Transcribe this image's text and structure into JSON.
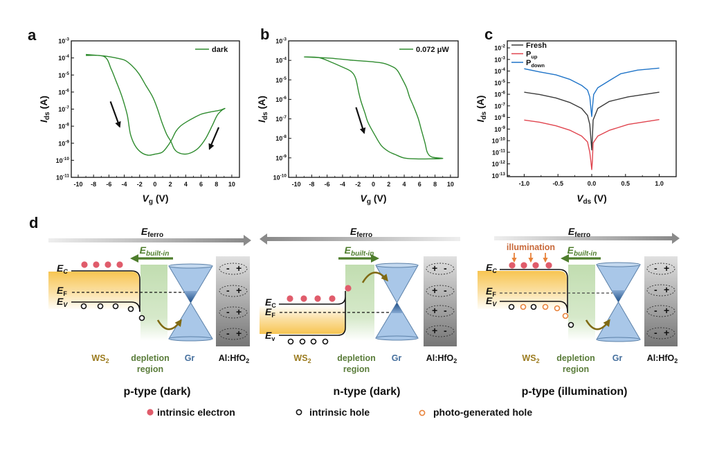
{
  "figure": {
    "panel_labels": {
      "a": "a",
      "b": "b",
      "c": "c",
      "d": "d"
    }
  },
  "chart_data": [
    {
      "panel": "a",
      "type": "line",
      "title": "",
      "xlabel": {
        "symbol": "V",
        "sub": "g",
        "unit": " (V)"
      },
      "ylabel": {
        "symbol": "I",
        "sub": "ds",
        "unit": " (A)"
      },
      "xscale": "linear",
      "yscale": "log",
      "xlim": [
        -10.9,
        11
      ],
      "ylim": [
        1e-11,
        0.001
      ],
      "grid": false,
      "x_ticks": [
        -10,
        -8,
        -6,
        -4,
        -2,
        0,
        2,
        4,
        6,
        8,
        10
      ],
      "x_tick_labels": [
        "-10",
        "-8",
        "-6",
        "-4",
        "-2",
        "0",
        "2",
        "4",
        "6",
        "8",
        "10"
      ],
      "y_ticks": [
        0.001,
        0.0001,
        1e-05,
        1e-06,
        1e-07,
        1e-08,
        1e-09,
        1e-10,
        1e-11
      ],
      "y_tick_labels": [
        "10^-3",
        "10^-4",
        "10^-5",
        "10^-6",
        "10^-7",
        "10^-8",
        "10^-9",
        "10^-10",
        "10^-11"
      ],
      "legend": {
        "position": "top-right"
      },
      "series": [
        {
          "name": "dark",
          "name_sub": "",
          "color": "#2e8b2e",
          "x": [
            -9.0,
            -6.6,
            -5.7,
            -5.1,
            -4.5,
            -4.1,
            -3.6,
            -3.2,
            -2.6,
            -1.8,
            -0.9,
            0.0,
            0.9,
            1.5,
            2.1,
            2.7,
            3.3,
            4.2,
            5.1,
            6.0,
            6.6,
            7.5,
            8.4,
            9.1,
            8.7,
            8.1,
            7.5,
            6.6,
            5.7,
            4.8,
            3.9,
            3.0,
            2.5,
            2.1,
            1.5,
            0.9,
            0.3,
            -0.3,
            -1.2,
            -2.1,
            -3.0,
            -3.9,
            -5.1,
            -6.6,
            -9.0
          ],
          "y": [
            0.00014,
            0.00012,
            2.2e-05,
            4.7e-06,
            9.8e-07,
            2.8e-07,
            4.3e-08,
            3.5e-09,
            7.4e-10,
            2.9e-10,
            2e-10,
            2.3e-10,
            2.9e-10,
            5.5e-10,
            1.4e-09,
            4.8e-09,
            1e-08,
            1.9e-08,
            3.2e-08,
            5e-08,
            5.9e-08,
            7.2e-08,
            8.5e-08,
            1.1e-07,
            8.5e-08,
            4.3e-08,
            1.2e-08,
            1.9e-09,
            5.5e-10,
            2.9e-10,
            2.3e-10,
            2.9e-10,
            4.7e-10,
            1.2e-09,
            3.5e-09,
            1.7e-08,
            1.1e-07,
            5.2e-07,
            2.5e-06,
            1.2e-05,
            3.5e-05,
            7.2e-05,
            0.0001,
            0.00013,
            0.00016
          ]
        }
      ],
      "annotations": [
        {
          "type": "arrow",
          "meaning": "sweep direction",
          "from": [
            -5.8,
            2.8e-07
          ],
          "to": [
            -4.6,
            9.3e-09
          ]
        },
        {
          "type": "arrow",
          "meaning": "sweep direction",
          "from": [
            8.3,
            8.5e-09
          ],
          "to": [
            7.1,
            4.7e-10
          ]
        }
      ]
    },
    {
      "panel": "b",
      "type": "line",
      "title": "",
      "xlabel": {
        "symbol": "V",
        "sub": "g",
        "unit": " (V)"
      },
      "ylabel": {
        "symbol": "I",
        "sub": "ds",
        "unit": " (A)"
      },
      "xscale": "linear",
      "yscale": "log",
      "xlim": [
        -11,
        11
      ],
      "ylim": [
        1e-10,
        0.001
      ],
      "grid": false,
      "x_ticks": [
        -10,
        -8,
        -6,
        -4,
        -2,
        0,
        2,
        4,
        6,
        8,
        10
      ],
      "x_tick_labels": [
        "-10",
        "-8",
        "-6",
        "-4",
        "-2",
        "0",
        "2",
        "4",
        "6",
        "8",
        "10"
      ],
      "y_ticks": [
        0.001,
        0.0001,
        1e-05,
        1e-06,
        1e-07,
        1e-08,
        1e-09,
        1e-10
      ],
      "y_tick_labels": [
        "10^-3",
        "10^-4",
        "10^-5",
        "10^-6",
        "10^-7",
        "10^-8",
        "10^-9",
        "10^-10"
      ],
      "legend": {
        "position": "top-right"
      },
      "series": [
        {
          "name": "0.072 μW",
          "name_sub": "",
          "color": "#2e8b2e",
          "x": [
            -9.0,
            -7.1,
            -5.6,
            -4.1,
            -2.9,
            -2.3,
            -1.9,
            -1.6,
            -1.1,
            -0.7,
            0.1,
            1.0,
            1.9,
            2.8,
            4.0,
            5.5,
            7.3,
            9.0,
            7.6,
            7.0,
            6.7,
            6.2,
            5.8,
            5.2,
            4.7,
            4.3,
            3.7,
            3.1,
            2.5,
            1.3,
            -0.2,
            -2.6,
            -5.6,
            -9.0
          ],
          "y": [
            0.00015,
            0.00014,
            8.5e-05,
            4.7e-05,
            2.7e-05,
            1.2e-05,
            2.3e-06,
            7.8e-07,
            2e-07,
            6.6e-08,
            1.7e-08,
            4.4e-09,
            2.2e-09,
            1.5e-09,
            9.8e-10,
            8.9e-10,
            8.9e-10,
            9.3e-10,
            1.1e-09,
            1.9e-09,
            5.8e-09,
            3e-08,
            1.1e-07,
            4.5e-07,
            1.3e-06,
            4e-06,
            1.2e-05,
            3.1e-05,
            4.7e-05,
            7.1e-05,
            8.5e-05,
            0.0001,
            0.00013,
            0.00015
          ]
        }
      ],
      "annotations": [
        {
          "type": "arrow",
          "meaning": "sweep direction",
          "from": [
            -2.25,
            3.9e-07
          ],
          "to": [
            -1.2,
            1.9e-08
          ]
        }
      ]
    },
    {
      "panel": "c",
      "type": "line",
      "title": "",
      "xlabel": {
        "symbol": "V",
        "sub": "ds",
        "unit": " (V)"
      },
      "ylabel": {
        "symbol": "I",
        "sub": "ds",
        "unit": " (A)"
      },
      "xscale": "linear",
      "yscale": "log",
      "xlim": [
        -1.25,
        1.25
      ],
      "ylim": [
        7.9e-14,
        0.04
      ],
      "grid": false,
      "x_ticks": [
        -1.0,
        -0.5,
        0.0,
        0.5,
        1.0
      ],
      "x_tick_labels": [
        "-1.0",
        "-0.5",
        "0.0",
        "0.5",
        "1.0"
      ],
      "y_ticks": [
        0.01,
        0.001,
        0.0001,
        1e-05,
        1e-06,
        1e-07,
        1e-08,
        1e-09,
        1e-10,
        1e-11,
        1e-12,
        1e-13
      ],
      "y_tick_labels": [
        "10^-2",
        "10^-3",
        "10^-4",
        "10^-5",
        "10^-6",
        "10^-7",
        "10^-8",
        "10^-9",
        "10^-10",
        "10^-11",
        "10^-12",
        "10^-13"
      ],
      "legend": {
        "position": "top-left"
      },
      "series": [
        {
          "name": "Fresh",
          "name_sub": "",
          "color": "#3a3a3a",
          "x": [
            -1.0,
            -0.77,
            -0.53,
            -0.32,
            -0.15,
            -0.063,
            -0.029,
            -0.012,
            0.0,
            0.009,
            0.02,
            0.09,
            0.26,
            0.54,
            1.0
          ],
          "y": [
            1.5e-06,
            9.5e-07,
            4.8e-07,
            1.9e-07,
            6e-08,
            1.5e-08,
            2.5e-09,
            1.5e-10,
            1.6e-11,
            1.5e-10,
            6e-09,
            6e-08,
            2.4e-07,
            6e-07,
            1.5e-06
          ]
        },
        {
          "name": "P",
          "name_sub": "up",
          "color": "#e0444e",
          "x": [
            -1.0,
            -0.77,
            -0.53,
            -0.32,
            -0.15,
            -0.063,
            -0.029,
            -0.012,
            0.0,
            0.009,
            0.02,
            0.09,
            0.26,
            0.54,
            1.0
          ],
          "y": [
            6e-09,
            3.9e-09,
            1.9e-09,
            7.8e-10,
            2.5e-10,
            7.8e-11,
            1e-11,
            1.6e-12,
            3.2e-13,
            1.6e-12,
            6.3e-11,
            2.5e-10,
            7.8e-10,
            2.5e-09,
            6.6e-09
          ]
        },
        {
          "name": "P",
          "name_sub": "down",
          "color": "#1f74c8",
          "x": [
            -1.0,
            -0.77,
            -0.53,
            -0.32,
            -0.15,
            -0.063,
            -0.029,
            -0.012,
            0.0,
            0.009,
            0.029,
            0.09,
            0.26,
            0.43,
            0.68,
            1.0
          ],
          "y": [
            0.00016,
            8.5e-05,
            4.7e-05,
            1.9e-05,
            5.9e-06,
            2.3e-06,
            6e-07,
            6e-08,
            1.2e-08,
            6e-08,
            9.5e-07,
            3.7e-06,
            1.5e-05,
            5.9e-05,
            0.00012,
            0.00018
          ]
        }
      ],
      "annotations": []
    }
  ],
  "schematic": {
    "colors": {
      "electron": "#e05c6b",
      "intrinsic_hole": "#111111",
      "photo_hole": "#e8823a",
      "ws2_label": "#9b7b1f",
      "depletion_label": "#5a7c3a",
      "gr_label": "#46709e",
      "builtin": "#4e7d2c",
      "illumination": "#c8693a"
    },
    "panels": [
      {
        "title": "p-type (dark)",
        "e_ferro": {
          "symbol": "E",
          "sub": "ferro",
          "direction": "right"
        },
        "e_builtin": {
          "symbol": "E",
          "sub": "built-in",
          "direction": "left"
        },
        "levels": {
          "symbol": "E",
          "ec": "C",
          "ef": "F",
          "ev": "V"
        },
        "labels": {
          "ws2": "WS",
          "ws2_sub": "2",
          "depletion": "depletion",
          "region": "region",
          "gr": "Gr",
          "oxide": "Al:HfO",
          "oxide_sub": "2"
        },
        "dipole": {
          "left": "-",
          "right": "+"
        },
        "electrons": 4,
        "holes": [
          "intrinsic",
          "intrinsic",
          "intrinsic",
          "intrinsic",
          "intrinsic"
        ]
      },
      {
        "title": "n-type (dark)",
        "e_ferro": {
          "symbol": "E",
          "sub": "ferro",
          "direction": "left"
        },
        "e_builtin": {
          "symbol": "E",
          "sub": "built-in",
          "direction": "right"
        },
        "levels": {
          "symbol": "E",
          "ec": "C",
          "ef": "F",
          "ev": "v"
        },
        "labels": {
          "ws2": "WS",
          "ws2_sub": "2",
          "depletion": "depletion",
          "region": "region",
          "gr": "Gr",
          "oxide": "Al:HfO",
          "oxide_sub": "2"
        },
        "dipole": {
          "left": "+",
          "right": "-"
        },
        "electrons": 5,
        "holes": [
          "intrinsic",
          "intrinsic",
          "intrinsic",
          "intrinsic"
        ]
      },
      {
        "title": "p-type (illumination)",
        "illumination": "illumination",
        "e_ferro": {
          "symbol": "E",
          "sub": "ferro",
          "direction": "right"
        },
        "e_builtin": {
          "symbol": "E",
          "sub": "built-in",
          "direction": "left"
        },
        "levels": {
          "symbol": "E",
          "ec": "C",
          "ef": "F",
          "ev": "V"
        },
        "labels": {
          "ws2": "WS",
          "ws2_sub": "2",
          "depletion": "depletion",
          "region": "region",
          "gr": "Gr",
          "oxide": "Al:HfO",
          "oxide_sub": "2"
        },
        "dipole": {
          "left": "-",
          "right": "+"
        },
        "electrons": 4,
        "holes": [
          "intrinsic",
          "photo-generated",
          "intrinsic",
          "photo-generated",
          "photo-generated",
          "photo-generated",
          "intrinsic"
        ]
      }
    ],
    "legend": [
      {
        "marker": "filled-circle",
        "label": "intrinsic electron"
      },
      {
        "marker": "open-circle",
        "label": "intrinsic hole"
      },
      {
        "marker": "open-circle-orange",
        "label": "photo-generated hole"
      }
    ]
  }
}
